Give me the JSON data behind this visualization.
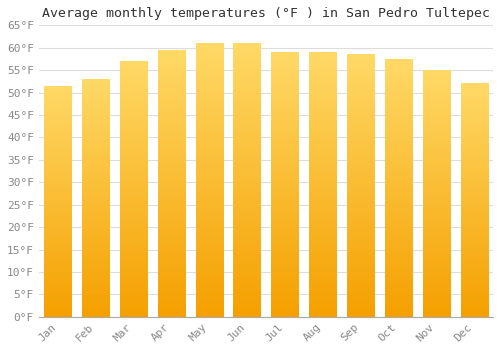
{
  "title": "Average monthly temperatures (°F ) in San Pedro Tultepec",
  "months": [
    "Jan",
    "Feb",
    "Mar",
    "Apr",
    "May",
    "Jun",
    "Jul",
    "Aug",
    "Sep",
    "Oct",
    "Nov",
    "Dec"
  ],
  "values": [
    51.5,
    53.0,
    57.0,
    59.5,
    61.0,
    61.0,
    59.0,
    59.0,
    58.5,
    57.5,
    55.0,
    52.0
  ],
  "bar_color_bottom": "#F5A000",
  "bar_color_top": "#FFD966",
  "ylim": [
    0,
    65
  ],
  "yticks": [
    0,
    5,
    10,
    15,
    20,
    25,
    30,
    35,
    40,
    45,
    50,
    55,
    60,
    65
  ],
  "ytick_labels": [
    "0°F",
    "5°F",
    "10°F",
    "15°F",
    "20°F",
    "25°F",
    "30°F",
    "35°F",
    "40°F",
    "45°F",
    "50°F",
    "55°F",
    "60°F",
    "65°F"
  ],
  "background_color": "#FFFFFF",
  "grid_color": "#DDDDDD",
  "title_fontsize": 9.5,
  "tick_fontsize": 8,
  "font_family": "monospace",
  "bar_width": 0.72
}
